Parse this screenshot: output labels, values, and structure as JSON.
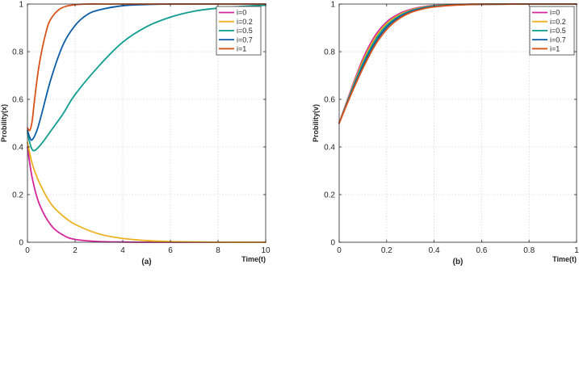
{
  "chart_data": [
    {
      "type": "line",
      "panel": "(a)",
      "xlabel": "Time(t)",
      "ylabel": "Probility(x)",
      "xlim": [
        0,
        10
      ],
      "ylim": [
        0,
        1
      ],
      "xticks": [
        0,
        2,
        4,
        6,
        8,
        10
      ],
      "yticks": [
        0,
        0.2,
        0.4,
        0.6,
        0.8,
        1
      ],
      "grid": true,
      "legend_position": "top-right",
      "series": [
        {
          "name": "i=0",
          "color": "#d4259b",
          "x": [
            0,
            0.2,
            0.5,
            1,
            1.5,
            2,
            3,
            4,
            5,
            6,
            8,
            10
          ],
          "y": [
            0.4,
            0.27,
            0.16,
            0.07,
            0.03,
            0.012,
            0.003,
            0.001,
            0,
            0,
            0,
            0
          ]
        },
        {
          "name": "i=0.2",
          "color": "#edb120",
          "x": [
            0,
            0.2,
            0.5,
            1,
            1.5,
            2,
            3,
            4,
            5,
            6,
            7,
            8,
            10
          ],
          "y": [
            0.42,
            0.33,
            0.25,
            0.16,
            0.11,
            0.075,
            0.035,
            0.016,
            0.007,
            0.003,
            0.0015,
            0.0005,
            0
          ]
        },
        {
          "name": "i=0.5",
          "color": "#0f9d91",
          "x": [
            0,
            0.15,
            0.3,
            0.6,
            1,
            1.5,
            2,
            3,
            4,
            5,
            6,
            7,
            8,
            9,
            10
          ],
          "y": [
            0.46,
            0.4,
            0.385,
            0.415,
            0.47,
            0.54,
            0.62,
            0.74,
            0.84,
            0.905,
            0.945,
            0.97,
            0.983,
            0.99,
            0.995
          ]
        },
        {
          "name": "i=0.7",
          "color": "#0b5ea6",
          "x": [
            0,
            0.1,
            0.2,
            0.4,
            0.6,
            1,
            1.5,
            2,
            2.5,
            3,
            4,
            5,
            6,
            8,
            10
          ],
          "y": [
            0.47,
            0.44,
            0.43,
            0.47,
            0.54,
            0.69,
            0.83,
            0.91,
            0.955,
            0.975,
            0.993,
            0.998,
            1,
            1,
            1
          ]
        },
        {
          "name": "i=1",
          "color": "#d95319",
          "x": [
            0,
            0.1,
            0.2,
            0.3,
            0.5,
            0.8,
            1,
            1.3,
            1.6,
            2,
            2.5,
            3,
            4,
            6,
            10
          ],
          "y": [
            0.48,
            0.47,
            0.51,
            0.6,
            0.75,
            0.89,
            0.94,
            0.975,
            0.99,
            0.997,
            1,
            1,
            1,
            1,
            1
          ]
        }
      ]
    },
    {
      "type": "line",
      "panel": "(b)",
      "xlabel": "Time(t)",
      "ylabel": "Probility(v)",
      "xlim": [
        0,
        1
      ],
      "ylim": [
        0,
        1
      ],
      "xticks": [
        0,
        0.2,
        0.4,
        0.6,
        0.8,
        1
      ],
      "yticks": [
        0,
        0.2,
        0.4,
        0.6,
        0.8,
        1
      ],
      "grid": true,
      "legend_position": "top-right",
      "series": [
        {
          "name": "i=0",
          "color": "#d4259b",
          "x": [
            0,
            0.05,
            0.1,
            0.15,
            0.2,
            0.25,
            0.3,
            0.35,
            0.4,
            0.5,
            0.6,
            0.8,
            1
          ],
          "y": [
            0.5,
            0.64,
            0.77,
            0.865,
            0.925,
            0.958,
            0.977,
            0.988,
            0.994,
            0.998,
            1,
            1,
            1
          ]
        },
        {
          "name": "i=0.2",
          "color": "#edb120",
          "x": [
            0,
            0.05,
            0.1,
            0.15,
            0.2,
            0.25,
            0.3,
            0.35,
            0.4,
            0.5,
            0.6,
            0.8,
            1
          ],
          "y": [
            0.5,
            0.635,
            0.76,
            0.855,
            0.918,
            0.953,
            0.974,
            0.986,
            0.993,
            0.998,
            1,
            1,
            1
          ]
        },
        {
          "name": "i=0.5",
          "color": "#0f9d91",
          "x": [
            0,
            0.05,
            0.1,
            0.15,
            0.2,
            0.25,
            0.3,
            0.35,
            0.4,
            0.5,
            0.6,
            0.8,
            1
          ],
          "y": [
            0.5,
            0.63,
            0.75,
            0.845,
            0.91,
            0.948,
            0.971,
            0.984,
            0.992,
            0.997,
            0.999,
            1,
            1
          ]
        },
        {
          "name": "i=0.7",
          "color": "#0b5ea6",
          "x": [
            0,
            0.05,
            0.1,
            0.15,
            0.2,
            0.25,
            0.3,
            0.35,
            0.4,
            0.5,
            0.6,
            0.8,
            1
          ],
          "y": [
            0.5,
            0.625,
            0.74,
            0.835,
            0.902,
            0.943,
            0.968,
            0.982,
            0.99,
            0.997,
            0.999,
            1,
            1
          ]
        },
        {
          "name": "i=1",
          "color": "#d95319",
          "x": [
            0,
            0.05,
            0.1,
            0.15,
            0.2,
            0.25,
            0.3,
            0.35,
            0.4,
            0.5,
            0.6,
            0.8,
            1
          ],
          "y": [
            0.5,
            0.62,
            0.73,
            0.825,
            0.893,
            0.937,
            0.964,
            0.979,
            0.988,
            0.996,
            0.999,
            1,
            1
          ]
        }
      ]
    }
  ]
}
